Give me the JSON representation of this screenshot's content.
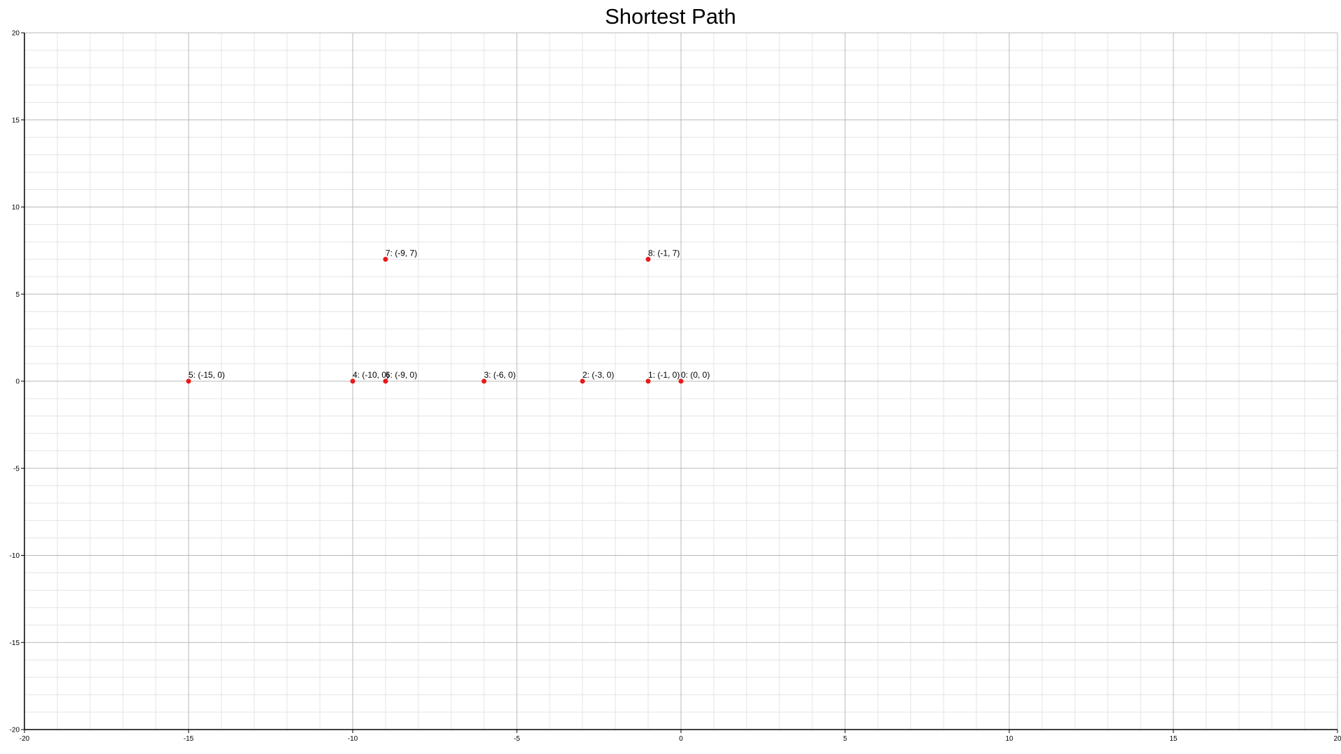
{
  "chart_data": {
    "type": "scatter",
    "title": "Shortest Path",
    "xlabel": "",
    "ylabel": "",
    "xlim": [
      -20,
      20
    ],
    "ylim": [
      -20,
      20
    ],
    "x_ticks": [
      -20,
      -15,
      -10,
      -5,
      0,
      5,
      10,
      15,
      20
    ],
    "y_ticks": [
      -20,
      -15,
      -10,
      -5,
      0,
      5,
      10,
      15,
      20
    ],
    "x_tick_labels": [
      "-20",
      "-15",
      "-10",
      "-5",
      "0",
      "5",
      "10",
      "15",
      "20"
    ],
    "y_tick_labels": [
      "-20",
      "-15",
      "-10",
      "-5",
      "0",
      "5",
      "10",
      "15",
      "20"
    ],
    "minor_step": 1,
    "grid": true,
    "point_color": "#e8191a",
    "major_grid_color": "#b8b8b8",
    "minor_grid_color": "#e4e4e4",
    "points": [
      {
        "x": 0,
        "y": 0,
        "label": "0:  (0, 0)"
      },
      {
        "x": -1,
        "y": 0,
        "label": "1:  (-1, 0)"
      },
      {
        "x": -3,
        "y": 0,
        "label": "2:  (-3, 0)"
      },
      {
        "x": -6,
        "y": 0,
        "label": "3:  (-6, 0)"
      },
      {
        "x": -10,
        "y": 0,
        "label": "4:  (-10, 0)"
      },
      {
        "x": -15,
        "y": 0,
        "label": "5:  (-15, 0)"
      },
      {
        "x": -9,
        "y": 0,
        "label": "6:  (-9, 0)"
      },
      {
        "x": -9,
        "y": 7,
        "label": "7:  (-9, 7)"
      },
      {
        "x": -1,
        "y": 7,
        "label": "8:  (-1, 7)"
      }
    ]
  }
}
